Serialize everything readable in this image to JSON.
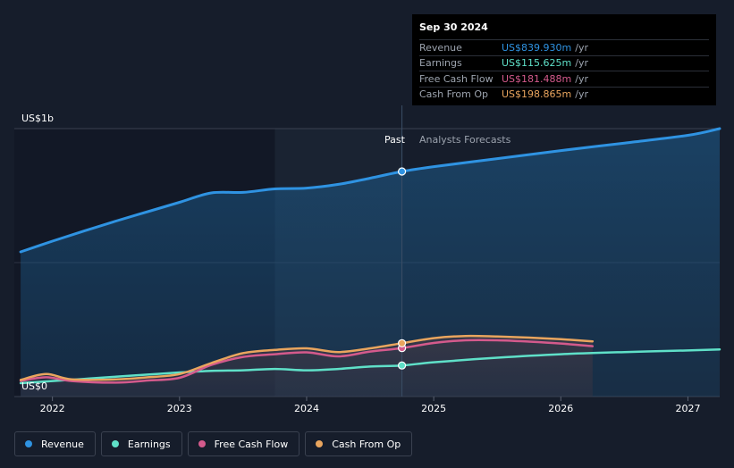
{
  "tooltip": {
    "date": "Sep 30 2024",
    "rows": [
      {
        "label": "Revenue",
        "value": "US$839.930m",
        "unit": "/yr",
        "color": "#2f93e2"
      },
      {
        "label": "Earnings",
        "value": "US$115.625m",
        "unit": "/yr",
        "color": "#5fe0c8"
      },
      {
        "label": "Free Cash Flow",
        "value": "US$181.488m",
        "unit": "/yr",
        "color": "#d45a8c"
      },
      {
        "label": "Cash From Op",
        "value": "US$198.865m",
        "unit": "/yr",
        "color": "#e9a55e"
      }
    ]
  },
  "regions": {
    "past": "Past",
    "forecast": "Analysts Forecasts"
  },
  "legend": [
    {
      "label": "Revenue",
      "color": "#2f93e2"
    },
    {
      "label": "Earnings",
      "color": "#5fe0c8"
    },
    {
      "label": "Free Cash Flow",
      "color": "#d45a8c"
    },
    {
      "label": "Cash From Op",
      "color": "#e9a55e"
    }
  ],
  "chart_data": {
    "type": "line",
    "ylabel_top": "US$1b",
    "ylabel_bottom": "US$0",
    "ylim": [
      0,
      1000
    ],
    "xlim": [
      2021.7,
      2027.25
    ],
    "x_ticks": [
      "2022",
      "2023",
      "2024",
      "2025",
      "2026",
      "2027"
    ],
    "x_tick_values": [
      2022,
      2023,
      2024,
      2025,
      2026,
      2027
    ],
    "past_end": 2024.75,
    "tooltip_x": 2024.75,
    "series": [
      {
        "name": "Revenue",
        "color": "#2f93e2",
        "x": [
          2021.75,
          2022.0,
          2022.25,
          2022.5,
          2022.75,
          2023.0,
          2023.25,
          2023.5,
          2023.75,
          2024.0,
          2024.25,
          2024.5,
          2024.75,
          2025.0,
          2025.5,
          2026.0,
          2026.5,
          2027.0,
          2027.25
        ],
        "values": [
          540,
          580,
          618,
          655,
          690,
          725,
          760,
          762,
          775,
          778,
          792,
          815,
          840,
          858,
          888,
          918,
          946,
          975,
          1000
        ]
      },
      {
        "name": "Earnings",
        "color": "#5fe0c8",
        "x": [
          2021.75,
          2022.0,
          2022.25,
          2022.5,
          2022.75,
          2023.0,
          2023.25,
          2023.5,
          2023.75,
          2024.0,
          2024.25,
          2024.5,
          2024.75,
          2025.0,
          2025.5,
          2026.0,
          2026.5,
          2027.0,
          2027.25
        ],
        "values": [
          50,
          58,
          66,
          74,
          82,
          90,
          96,
          98,
          103,
          98,
          103,
          112,
          116,
          128,
          145,
          158,
          166,
          172,
          176
        ]
      },
      {
        "name": "Free Cash Flow",
        "color": "#d45a8c",
        "x": [
          2021.75,
          2021.95,
          2022.15,
          2022.5,
          2022.75,
          2023.0,
          2023.25,
          2023.5,
          2023.75,
          2024.0,
          2024.25,
          2024.5,
          2024.75,
          2025.0,
          2025.25,
          2025.5,
          2025.75,
          2026.0,
          2026.25
        ],
        "values": [
          58,
          72,
          58,
          52,
          60,
          70,
          118,
          148,
          158,
          165,
          150,
          168,
          181,
          200,
          210,
          210,
          205,
          198,
          188
        ]
      },
      {
        "name": "Cash From Op",
        "color": "#e9a55e",
        "x": [
          2021.75,
          2021.95,
          2022.15,
          2022.5,
          2022.75,
          2023.0,
          2023.25,
          2023.5,
          2023.75,
          2024.0,
          2024.25,
          2024.5,
          2024.75,
          2025.0,
          2025.25,
          2025.5,
          2025.75,
          2026.0,
          2026.25
        ],
        "values": [
          62,
          84,
          64,
          64,
          72,
          84,
          125,
          162,
          174,
          180,
          166,
          180,
          199,
          218,
          226,
          224,
          220,
          214,
          206
        ]
      }
    ]
  }
}
